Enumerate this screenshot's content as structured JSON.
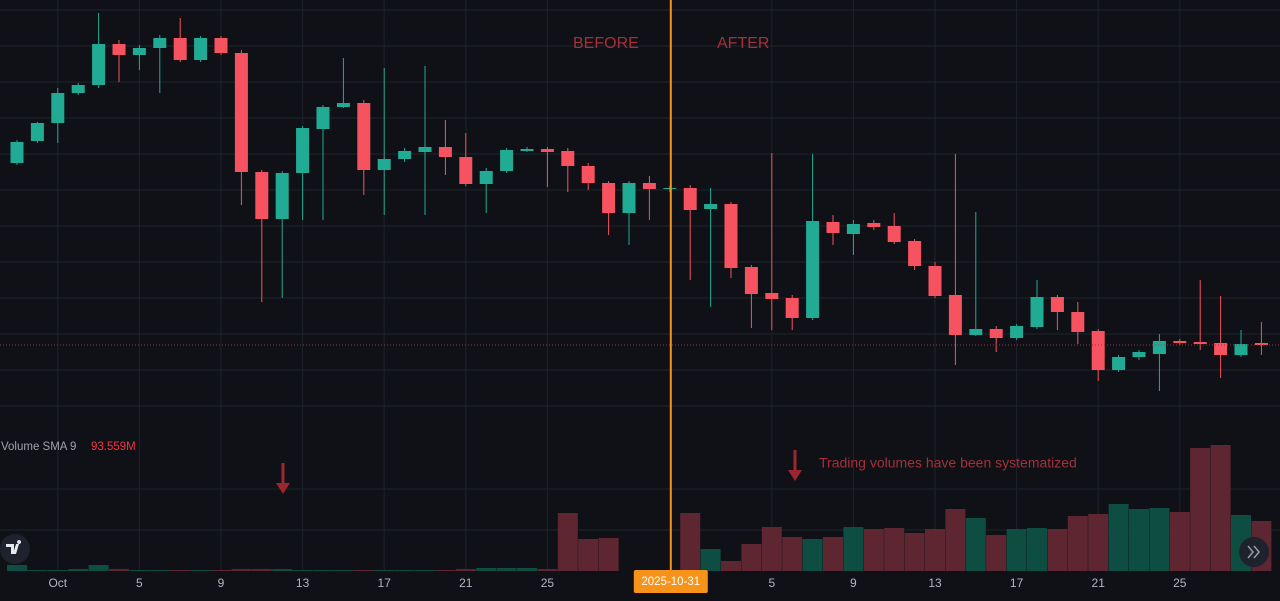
{
  "chart_data": {
    "type": "candlestick",
    "categories": [
      null,
      null,
      "Oct",
      null,
      null,
      null,
      "5",
      null,
      null,
      null,
      "9",
      null,
      null,
      null,
      "13",
      null,
      null,
      null,
      "17",
      null,
      null,
      null,
      "21",
      null,
      null,
      null,
      "25",
      null,
      null,
      null,
      null,
      null,
      "2025-10-31",
      null,
      null,
      null,
      null,
      "5",
      null,
      null,
      null,
      "9",
      null,
      null,
      null,
      "13",
      null,
      null,
      null,
      "17",
      null,
      null,
      null,
      "21",
      null,
      null,
      null,
      "25",
      null,
      null,
      null,
      null
    ],
    "open": [
      267,
      289,
      307,
      337,
      345,
      386,
      375,
      382,
      392,
      370,
      392,
      377,
      258,
      211,
      257,
      301,
      323,
      327,
      260,
      271,
      278,
      283,
      273,
      246,
      259,
      279,
      281,
      279,
      264,
      247,
      217,
      247,
      241,
      242,
      221,
      226,
      163,
      137,
      132,
      112,
      208,
      196,
      207,
      204,
      189,
      164,
      135,
      95,
      101,
      92,
      103,
      133,
      118,
      99,
      60,
      73,
      76,
      89,
      88,
      87,
      75,
      87
    ],
    "high": [
      290,
      308,
      342,
      347,
      417,
      390,
      385,
      395,
      412,
      394,
      394,
      380,
      260,
      259,
      304,
      325,
      372,
      330,
      362,
      282,
      364,
      310,
      297,
      262,
      282,
      283,
      283,
      282,
      267,
      249,
      249,
      254,
      244,
      245,
      242,
      228,
      165,
      277,
      135,
      276,
      215,
      210,
      210,
      217,
      191,
      168,
      276,
      218,
      104,
      106,
      150,
      135,
      128,
      101,
      75,
      80,
      96,
      91,
      150,
      134,
      100,
      108
    ],
    "low": [
      265,
      287,
      287,
      335,
      342,
      348,
      360,
      337,
      368,
      368,
      375,
      225,
      128,
      132,
      210,
      210,
      322,
      235,
      215,
      268,
      215,
      255,
      244,
      217,
      257,
      278,
      243,
      238,
      240,
      195,
      185,
      210,
      238,
      150,
      123,
      152,
      102,
      100,
      100,
      110,
      185,
      175,
      200,
      186,
      160,
      132,
      65,
      94,
      78,
      90,
      101,
      100,
      86,
      49,
      58,
      70,
      39,
      85,
      80,
      52,
      73,
      75
    ],
    "close": [
      288,
      307,
      337,
      345,
      386,
      375,
      382,
      392,
      370,
      392,
      377,
      258,
      211,
      257,
      302,
      323,
      327,
      260,
      271,
      279,
      283,
      273,
      246,
      259,
      280,
      281,
      278,
      264,
      247,
      217,
      247,
      241,
      242,
      220,
      226,
      162,
      136,
      131,
      112,
      209,
      197,
      206,
      203,
      188,
      164,
      134,
      95,
      101,
      92,
      104,
      133,
      118,
      98,
      60,
      73,
      78,
      89,
      87,
      86,
      75,
      86,
      85
    ],
    "volume": [
      6,
      1,
      1,
      2,
      6,
      2,
      1,
      1,
      1,
      1,
      1,
      2,
      2,
      2,
      1,
      1,
      1,
      1,
      1,
      1,
      1,
      1,
      2,
      3,
      3,
      3,
      2,
      58,
      32,
      33,
      0,
      0,
      0,
      58,
      22,
      10,
      27,
      44,
      34,
      32,
      34,
      44,
      42,
      43,
      38,
      42,
      62,
      53,
      36,
      42,
      43,
      42,
      55,
      57,
      67,
      62,
      63,
      59,
      123,
      126,
      56,
      50
    ],
    "ylim": [
      0,
      430
    ],
    "volume_ylim": [
      0,
      130
    ],
    "up_color": "#22ab94",
    "down_color": "#f7525f",
    "volume_up_color": "#0e4d42",
    "volume_down_color": "#5e2630",
    "annotations": [
      "BEFORE",
      "AFTER",
      "Trading volumes have been systematized"
    ],
    "indicator_name": "Volume SMA 9",
    "indicator_value": "93.559M"
  }
}
